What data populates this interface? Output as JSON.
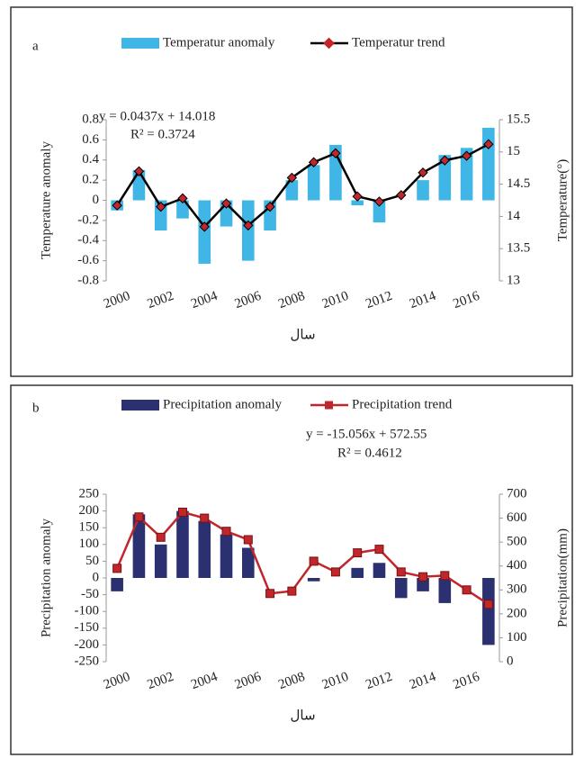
{
  "chart_data": [
    {
      "type": "bar",
      "panel": "a",
      "categories": [
        2000,
        null,
        2002,
        null,
        2004,
        null,
        2006,
        null,
        2008,
        null,
        2010,
        null,
        2012,
        null,
        2014,
        null,
        2016,
        null
      ],
      "series": [
        {
          "name": "Temperatur anomaly",
          "color": "#3fb6e6",
          "values": [
            -0.1,
            0.3,
            -0.3,
            -0.18,
            -0.63,
            -0.26,
            -0.6,
            -0.3,
            0.2,
            0.35,
            0.55,
            -0.05,
            -0.22,
            0.0,
            0.2,
            0.45,
            0.52,
            0.72
          ]
        },
        {
          "name": "Temperatur trend",
          "color": "#000000",
          "marker": "diamond",
          "marker_color": "#c0272d",
          "axis": "y2",
          "values": [
            14.17,
            14.7,
            14.15,
            14.28,
            13.84,
            14.2,
            13.86,
            14.15,
            14.6,
            14.84,
            14.98,
            14.31,
            14.23,
            14.33,
            14.68,
            14.87,
            14.94,
            15.12
          ]
        }
      ],
      "ylabel": "Temperature anomaly",
      "ylabel_color": "#3fb6e6",
      "y2label": "Temperature(°)",
      "xlabel": "سال",
      "ylim": [
        -0.8,
        0.8
      ],
      "yticks": [
        0.8,
        0.6,
        0.4,
        0.2,
        0,
        -0.2,
        -0.4,
        -0.6,
        -0.8
      ],
      "y2lim": [
        13,
        15.5
      ],
      "y2ticks": [
        13,
        13.5,
        14,
        14.5,
        15,
        15.5
      ],
      "annotations": [
        "y = 0.0437x + 14.018",
        "R² = 0.3724"
      ]
    },
    {
      "type": "bar",
      "panel": "b",
      "categories": [
        2000,
        null,
        2002,
        null,
        2004,
        null,
        2006,
        null,
        2008,
        null,
        2010,
        null,
        2012,
        null,
        2014,
        null,
        2016,
        null
      ],
      "series": [
        {
          "name": "Precipitation anomaly",
          "color": "#2b3070",
          "values": [
            -40,
            190,
            100,
            200,
            170,
            130,
            90,
            0,
            0,
            -10,
            0,
            30,
            45,
            -60,
            -40,
            -75,
            0,
            -200
          ]
        },
        {
          "name": "Precipitation trend",
          "color": "#c0272d",
          "marker": "square",
          "marker_color": "#c0272d",
          "axis": "y2",
          "values": [
            390,
            605,
            520,
            625,
            600,
            545,
            510,
            285,
            295,
            420,
            375,
            455,
            470,
            375,
            355,
            360,
            300,
            240
          ]
        }
      ],
      "ylabel": "Precipitation anomaly",
      "ylabel_color": "#000000",
      "y2label": "Precipitation(mm)",
      "xlabel": "سال",
      "ylim": [
        -250,
        250
      ],
      "yticks": [
        250,
        200,
        150,
        100,
        50,
        0,
        -50,
        -100,
        -150,
        -200,
        -250
      ],
      "y2lim": [
        0,
        700
      ],
      "y2ticks": [
        0,
        100,
        200,
        300,
        400,
        500,
        600,
        700
      ],
      "annotations": [
        "y = -15.056x + 572.55",
        "R² = 0.4612"
      ]
    }
  ]
}
